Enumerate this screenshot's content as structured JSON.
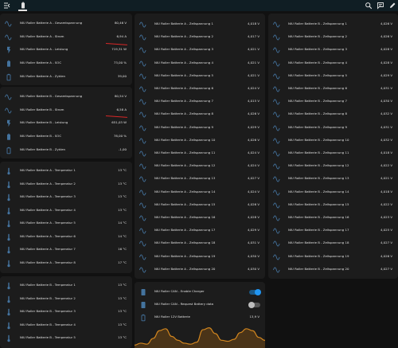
{
  "topbar": {
    "icons": [
      "menu-open-icon",
      "battery-tab-icon",
      "search-icon",
      "chat-icon",
      "edit-icon"
    ]
  },
  "colors": {
    "background": "#111111",
    "card": "#1c1c1c",
    "icon": "#44739e",
    "accent": "#2196f3",
    "graph": "#d2861f"
  },
  "battery_a": [
    {
      "label": "NIU Roller Batterie A - Gesamtspannung",
      "value": "80,46 V",
      "icon": "sine-wave-icon"
    },
    {
      "label": "NIU Roller Batterie A - Strom",
      "value": "6,94 A",
      "icon": "sine-wave-icon"
    },
    {
      "label": "NIU Roller Batterie A - Leistung",
      "value": "719,31 W",
      "icon": "flash-icon"
    },
    {
      "label": "NIU Roller Batterie A - SOC",
      "value": "73,00 %",
      "icon": "battery-icon"
    },
    {
      "label": "NIU Roller Batterie A - Zyklen",
      "value": "39,00",
      "icon": "battery-outline-icon"
    }
  ],
  "battery_b": [
    {
      "label": "NIU Roller Batterie B - Gesamtspannung",
      "value": "80,54 V",
      "icon": "sine-wave-icon"
    },
    {
      "label": "NIU Roller Batterie B - Strom",
      "value": "6,58 A",
      "icon": "sine-wave-icon"
    },
    {
      "label": "NIU Roller Batterie B - Leistung",
      "value": "651,03 W",
      "icon": "flash-icon"
    },
    {
      "label": "NIU Roller Batterie B - SOC",
      "value": "78,00 %",
      "icon": "battery-icon"
    },
    {
      "label": "NIU Roller Batterie B - Zyklen",
      "value": "-1,00",
      "icon": "battery-outline-icon"
    }
  ],
  "temps_a": [
    {
      "label": "NIU Roller Batterie A - Temperatur 1",
      "value": "13 °C"
    },
    {
      "label": "NIU Roller Batterie A - Temperatur 2",
      "value": "13 °C"
    },
    {
      "label": "NIU Roller Batterie A - Temperatur 3",
      "value": "13 °C"
    },
    {
      "label": "NIU Roller Batterie A - Temperatur 4",
      "value": "13 °C"
    },
    {
      "label": "NIU Roller Batterie A - Temperatur 5",
      "value": "14 °C"
    },
    {
      "label": "NIU Roller Batterie A - Temperatur 6",
      "value": "14 °C"
    },
    {
      "label": "NIU Roller Batterie A - Temperatur 7",
      "value": "16 °C"
    },
    {
      "label": "NIU Roller Batterie A - Temperatur 8",
      "value": "17 °C"
    }
  ],
  "temps_b": [
    {
      "label": "NIU Roller Batterie B - Temperatur 1",
      "value": "13 °C"
    },
    {
      "label": "NIU Roller Batterie B - Temperatur 2",
      "value": "13 °C"
    },
    {
      "label": "NIU Roller Batterie B - Temperatur 3",
      "value": "13 °C"
    },
    {
      "label": "NIU Roller Batterie B - Temperatur 4",
      "value": "13 °C"
    },
    {
      "label": "NIU Roller Batterie B - Temperatur 5",
      "value": "13 °C"
    }
  ],
  "cells_a": [
    {
      "label": "NIU Roller Batterie A - Zellspannung 1",
      "value": "4,018 V"
    },
    {
      "label": "NIU Roller Batterie A - Zellspannung 2",
      "value": "4,017 V"
    },
    {
      "label": "NIU Roller Batterie A - Zellspannung 3",
      "value": "4,021 V"
    },
    {
      "label": "NIU Roller Batterie A - Zellspannung 4",
      "value": "4,021 V"
    },
    {
      "label": "NIU Roller Batterie A - Zellspannung 5",
      "value": "4,021 V"
    },
    {
      "label": "NIU Roller Batterie A - Zellspannung 6",
      "value": "4,024 V"
    },
    {
      "label": "NIU Roller Batterie A - Zellspannung 7",
      "value": "4,015 V"
    },
    {
      "label": "NIU Roller Batterie A - Zellspannung 8",
      "value": "4,026 V"
    },
    {
      "label": "NIU Roller Batterie A - Zellspannung 9",
      "value": "4,029 V"
    },
    {
      "label": "NIU Roller Batterie A - Zellspannung 10",
      "value": "4,026 V"
    },
    {
      "label": "NIU Roller Batterie A - Zellspannung 11",
      "value": "4,024 V"
    },
    {
      "label": "NIU Roller Batterie A - Zellspannung 12",
      "value": "4,024 V"
    },
    {
      "label": "NIU Roller Batterie A - Zellspannung 13",
      "value": "4,027 V"
    },
    {
      "label": "NIU Roller Batterie A - Zellspannung 14",
      "value": "4,024 V"
    },
    {
      "label": "NIU Roller Batterie A - Zellspannung 15",
      "value": "4,026 V"
    },
    {
      "label": "NIU Roller Batterie A - Zellspannung 16",
      "value": "4,028 V"
    },
    {
      "label": "NIU Roller Batterie A - Zellspannung 17",
      "value": "4,029 V"
    },
    {
      "label": "NIU Roller Batterie A - Zellspannung 18",
      "value": "4,031 V"
    },
    {
      "label": "NIU Roller Batterie A - Zellspannung 19",
      "value": "4,030 V"
    },
    {
      "label": "NIU Roller Batterie A - Zellspannung 20",
      "value": "4,030 V"
    }
  ],
  "cells_b": [
    {
      "label": "NIU Roller Batterie B - Zellspannung 1",
      "value": "4,026 V"
    },
    {
      "label": "NIU Roller Batterie B - Zellspannung 2",
      "value": "4,026 V"
    },
    {
      "label": "NIU Roller Batterie B - Zellspannung 3",
      "value": "4,028 V"
    },
    {
      "label": "NIU Roller Batterie B - Zellspannung 4",
      "value": "4,028 V"
    },
    {
      "label": "NIU Roller Batterie B - Zellspannung 5",
      "value": "4,029 V"
    },
    {
      "label": "NIU Roller Batterie B - Zellspannung 6",
      "value": "4,031 V"
    },
    {
      "label": "NIU Roller Batterie B - Zellspannung 7",
      "value": "4,030 V"
    },
    {
      "label": "NIU Roller Batterie B - Zellspannung 8",
      "value": "4,032 V"
    },
    {
      "label": "NIU Roller Batterie B - Zellspannung 9",
      "value": "4,031 V"
    },
    {
      "label": "NIU Roller Batterie B - Zellspannung 10",
      "value": "4,032 V"
    },
    {
      "label": "NIU Roller Batterie B - Zellspannung 11",
      "value": "4,018 V"
    },
    {
      "label": "NIU Roller Batterie B - Zellspannung 12",
      "value": "4,022 V"
    },
    {
      "label": "NIU Roller Batterie B - Zellspannung 13",
      "value": "4,021 V"
    },
    {
      "label": "NIU Roller Batterie B - Zellspannung 14",
      "value": "4,018 V"
    },
    {
      "label": "NIU Roller Batterie B - Zellspannung 15",
      "value": "4,022 V"
    },
    {
      "label": "NIU Roller Batterie B - Zellspannung 16",
      "value": "4,023 V"
    },
    {
      "label": "NIU Roller Batterie B - Zellspannung 17",
      "value": "4,025 V"
    },
    {
      "label": "NIU Roller Batterie B - Zellspannung 18",
      "value": "4,027 V"
    },
    {
      "label": "NIU Roller Batterie B - Zellspannung 19",
      "value": "4,026 V"
    },
    {
      "label": "NIU Roller Batterie B - Zellspannung 20",
      "value": "4,027 V"
    }
  ],
  "can": {
    "enable_charger": {
      "label": "NIU Roller CAN - Enable Charger",
      "state": "on"
    },
    "request_battery": {
      "label": "NIU Roller CAN - Request Battery data",
      "state": "off"
    },
    "battery_12v": {
      "label": "NIU Roller 12V Batterie",
      "value": "13,9 V"
    }
  },
  "chart_data": {
    "type": "area",
    "title": "",
    "series": [
      {
        "values": [
          12.1,
          12.3,
          12.2,
          12.8,
          13.6,
          13.8,
          13.0,
          12.6,
          12.3,
          12.2,
          12.4,
          13.7,
          13.9,
          13.3,
          12.6,
          12.5,
          12.7,
          13.4,
          13.8,
          13.6,
          12.9,
          12.6
        ]
      }
    ],
    "ylim": [
      11.8,
      14.2
    ],
    "grid": false
  }
}
